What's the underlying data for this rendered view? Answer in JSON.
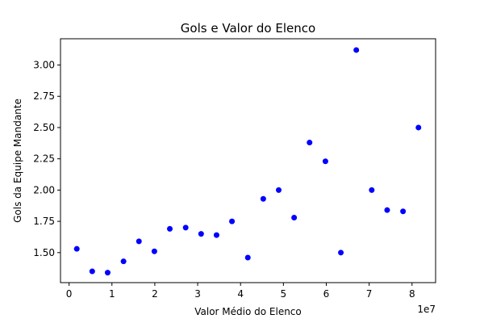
{
  "chart_data": {
    "type": "scatter",
    "title": "Gols e Valor do Elenco",
    "xlabel": "Valor Médio do Elenco",
    "ylabel": "Gols da Equipe Mandante",
    "x_offset_label": "1e7",
    "xlim": [
      -2000000,
      85500000
    ],
    "ylim": [
      1.26,
      3.21
    ],
    "x_ticks": [
      0,
      10000000,
      20000000,
      30000000,
      40000000,
      50000000,
      60000000,
      70000000,
      80000000
    ],
    "x_tick_labels": [
      "0",
      "1",
      "2",
      "3",
      "4",
      "5",
      "6",
      "7",
      "8"
    ],
    "y_ticks": [
      1.5,
      1.75,
      2.0,
      2.25,
      2.5,
      2.75,
      3.0
    ],
    "y_tick_labels": [
      "1.50",
      "1.75",
      "2.00",
      "2.25",
      "2.50",
      "2.75",
      "3.00"
    ],
    "grid": false,
    "marker_color": "#0000ff",
    "points": [
      {
        "x": 1800000,
        "y": 1.53
      },
      {
        "x": 5400000,
        "y": 1.35
      },
      {
        "x": 9000000,
        "y": 1.34
      },
      {
        "x": 12700000,
        "y": 1.43
      },
      {
        "x": 16300000,
        "y": 1.59
      },
      {
        "x": 19900000,
        "y": 1.51
      },
      {
        "x": 23500000,
        "y": 1.69
      },
      {
        "x": 27200000,
        "y": 1.7
      },
      {
        "x": 30800000,
        "y": 1.65
      },
      {
        "x": 34400000,
        "y": 1.64
      },
      {
        "x": 38000000,
        "y": 1.75
      },
      {
        "x": 41700000,
        "y": 1.46
      },
      {
        "x": 45300000,
        "y": 1.93
      },
      {
        "x": 48900000,
        "y": 2.0
      },
      {
        "x": 52500000,
        "y": 1.78
      },
      {
        "x": 56100000,
        "y": 2.38
      },
      {
        "x": 59800000,
        "y": 2.23
      },
      {
        "x": 63400000,
        "y": 1.5
      },
      {
        "x": 67000000,
        "y": 3.12
      },
      {
        "x": 70600000,
        "y": 2.0
      },
      {
        "x": 74200000,
        "y": 1.84
      },
      {
        "x": 77900000,
        "y": 1.83
      },
      {
        "x": 81500000,
        "y": 2.5
      }
    ]
  }
}
